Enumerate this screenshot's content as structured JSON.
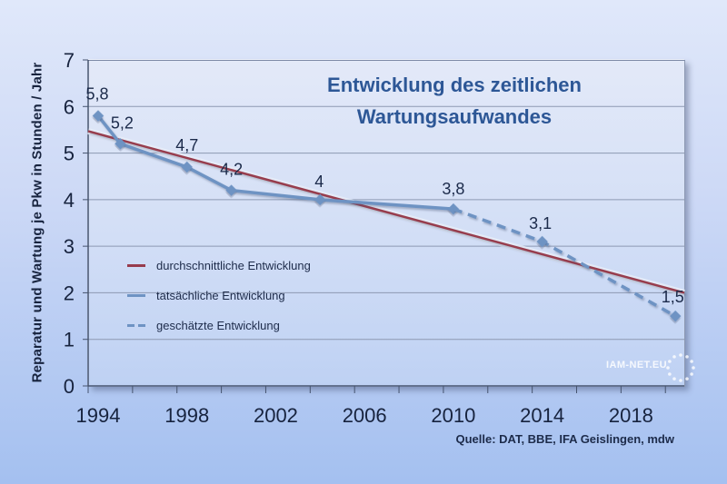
{
  "chart_data": {
    "type": "line",
    "title_lines": [
      "Entwicklung des zeitlichen",
      "Wartungsaufwandes"
    ],
    "ylabel": "Reparatur und Wartung je Pkw in Stunden / Jahr",
    "xlabel": "",
    "xlim": [
      1993.55,
      2020.4
    ],
    "ylim": [
      0,
      7
    ],
    "y_ticks": [
      0,
      1,
      2,
      3,
      4,
      5,
      6,
      7
    ],
    "x_tick_years": [
      1994,
      1998,
      2002,
      2006,
      2010,
      2014,
      2018
    ],
    "minor_xtick_step": 2,
    "grid": "horizontal",
    "legend_position": "inside-left",
    "series": [
      {
        "name": "durchschnittliche Entwicklung",
        "style": "solid",
        "role": "trend",
        "color": "#973c4d",
        "halo_color": "#e9edf7",
        "width": 2.5,
        "markers": false,
        "points": [
          [
            1993.55,
            5.47
          ],
          [
            2020.4,
            2.0
          ]
        ],
        "labels": []
      },
      {
        "name": "tatsächliche Entwicklung",
        "style": "solid",
        "role": "actual",
        "color": "#6e93c3",
        "width": 3.5,
        "markers": "diamond",
        "points": [
          [
            1994,
            5.8
          ],
          [
            1995,
            5.2
          ],
          [
            1998,
            4.7
          ],
          [
            2000,
            4.2
          ],
          [
            2004,
            4.0
          ],
          [
            2010,
            3.8
          ]
        ],
        "labels": [
          "5,8",
          "5,2",
          "4,7",
          "4,2",
          "4",
          "3,8"
        ],
        "label_offsets": [
          [
            -1,
            -18
          ],
          [
            2,
            -17
          ],
          [
            0,
            -18
          ],
          [
            0,
            -17
          ],
          [
            -1,
            -14
          ],
          [
            0,
            -16
          ]
        ]
      },
      {
        "name": "geschätzte Entwicklung",
        "style": "dashed",
        "role": "estimated",
        "color": "#6e93c3",
        "width": 3.5,
        "markers": "diamond",
        "skip_first_marker": true,
        "points": [
          [
            2010,
            3.8
          ],
          [
            2014,
            3.1
          ],
          [
            2020,
            1.5
          ]
        ],
        "labels": [
          null,
          "3,1",
          "1,5"
        ],
        "label_offsets": [
          [
            0,
            0
          ],
          [
            -2,
            -14
          ],
          [
            -3,
            -15
          ]
        ]
      }
    ],
    "source": "Quelle: DAT, BBE, IFA Geislingen, mdw",
    "watermark": "IAM-NET.EU"
  },
  "colors": {
    "background_top": "#e0e8fa",
    "background_bottom": "#a4c0f0",
    "title": "#2d5796",
    "axis_text": "#17233e",
    "grid_line": "#8d99b2",
    "axis_line": "#45536e",
    "trend_red": "#973c4d",
    "series_blue": "#6e93c3"
  }
}
